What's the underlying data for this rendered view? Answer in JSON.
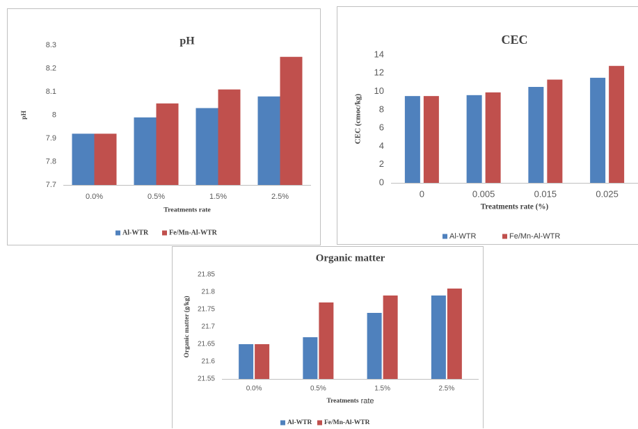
{
  "colors": {
    "al_wtr": "#4f81bd",
    "femn_al_wtr": "#c0504d",
    "axis": "#bfbfbf",
    "text": "#404040"
  },
  "chart_data": [
    {
      "id": "ph",
      "type": "bar",
      "title": "pH",
      "xlabel": "Treatments rate",
      "ylabel": "pH",
      "categories": [
        "0.0%",
        "0.5%",
        "1.5%",
        "2.5%"
      ],
      "ylim": [
        7.7,
        8.3
      ],
      "yticks": [
        "8.3",
        "8.2",
        "8.1",
        "8",
        "7.9",
        "7.8",
        "7.7"
      ],
      "grid": false,
      "legend_position": "bottom",
      "series": [
        {
          "name": "Al-WTR",
          "values": [
            7.92,
            7.99,
            8.03,
            8.08
          ]
        },
        {
          "name": "Fe/Mn-Al-WTR",
          "values": [
            7.92,
            8.05,
            8.11,
            8.25
          ]
        }
      ]
    },
    {
      "id": "cec",
      "type": "bar",
      "title": "CEC",
      "xlabel": "Treatments rate (%)",
      "ylabel": "CEC (cmoc/kg)",
      "categories": [
        "0",
        "0.005",
        "0.015",
        "0.025"
      ],
      "ylim": [
        0,
        14
      ],
      "yticks": [
        "14",
        "12",
        "10",
        "8",
        "6",
        "4",
        "2",
        "0"
      ],
      "grid": false,
      "legend_position": "bottom",
      "series": [
        {
          "name": "Al-WTR",
          "values": [
            9.5,
            9.6,
            10.5,
            11.5
          ]
        },
        {
          "name": "Fe/Mn-Al-WTR",
          "values": [
            9.5,
            9.9,
            11.3,
            12.8
          ]
        }
      ]
    },
    {
      "id": "om",
      "type": "bar",
      "title": "Organic matter",
      "xlabel_parts": [
        "Treatments",
        " rate"
      ],
      "ylabel": "Organic matter (g/kg)",
      "categories": [
        "0.0%",
        "0.5%",
        "1.5%",
        "2.5%"
      ],
      "ylim": [
        21.55,
        21.85
      ],
      "yticks": [
        "21.85",
        "21.8",
        "21.75",
        "21.7",
        "21.65",
        "21.6",
        "21.55"
      ],
      "grid": false,
      "legend_position": "bottom",
      "series": [
        {
          "name": "Al-WTR",
          "values": [
            21.65,
            21.67,
            21.74,
            21.79
          ]
        },
        {
          "name": "Fe/Mn-Al-WTR",
          "values": [
            21.65,
            21.77,
            21.79,
            21.81
          ]
        }
      ]
    }
  ]
}
